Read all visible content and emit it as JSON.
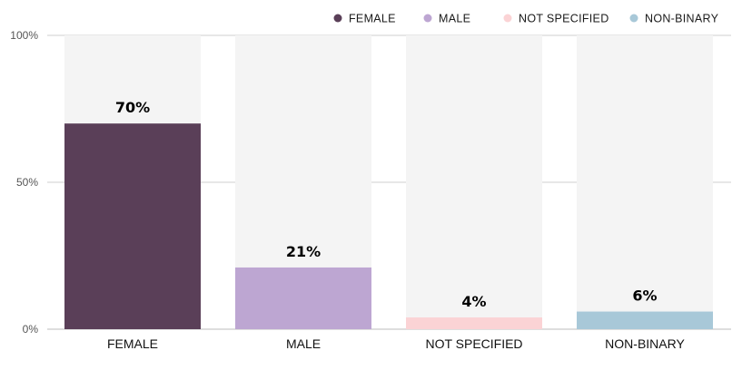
{
  "chart_data": {
    "type": "bar",
    "categories": [
      "FEMALE",
      "MALE",
      "NOT SPECIFIED",
      "NON-BINARY"
    ],
    "values": [
      70,
      21,
      4,
      6
    ],
    "data_labels": [
      "70%",
      "21%",
      "4%",
      "6%"
    ],
    "colors": [
      "#5a3f58",
      "#bda6d2",
      "#fbd3d5",
      "#a8c8d8"
    ],
    "background_bar_color": "#f4f4f4",
    "ylim": [
      0,
      100
    ],
    "y_ticks": [
      {
        "value": 0,
        "label": "0%"
      },
      {
        "value": 50,
        "label": "50%"
      },
      {
        "value": 100,
        "label": "100%"
      }
    ],
    "legend": {
      "placement": "top-right",
      "entries": [
        "FEMALE",
        "MALE",
        "NOT SPECIFIED",
        "NON-BINARY"
      ]
    },
    "grid": true,
    "title": "",
    "xlabel": "",
    "ylabel": ""
  }
}
